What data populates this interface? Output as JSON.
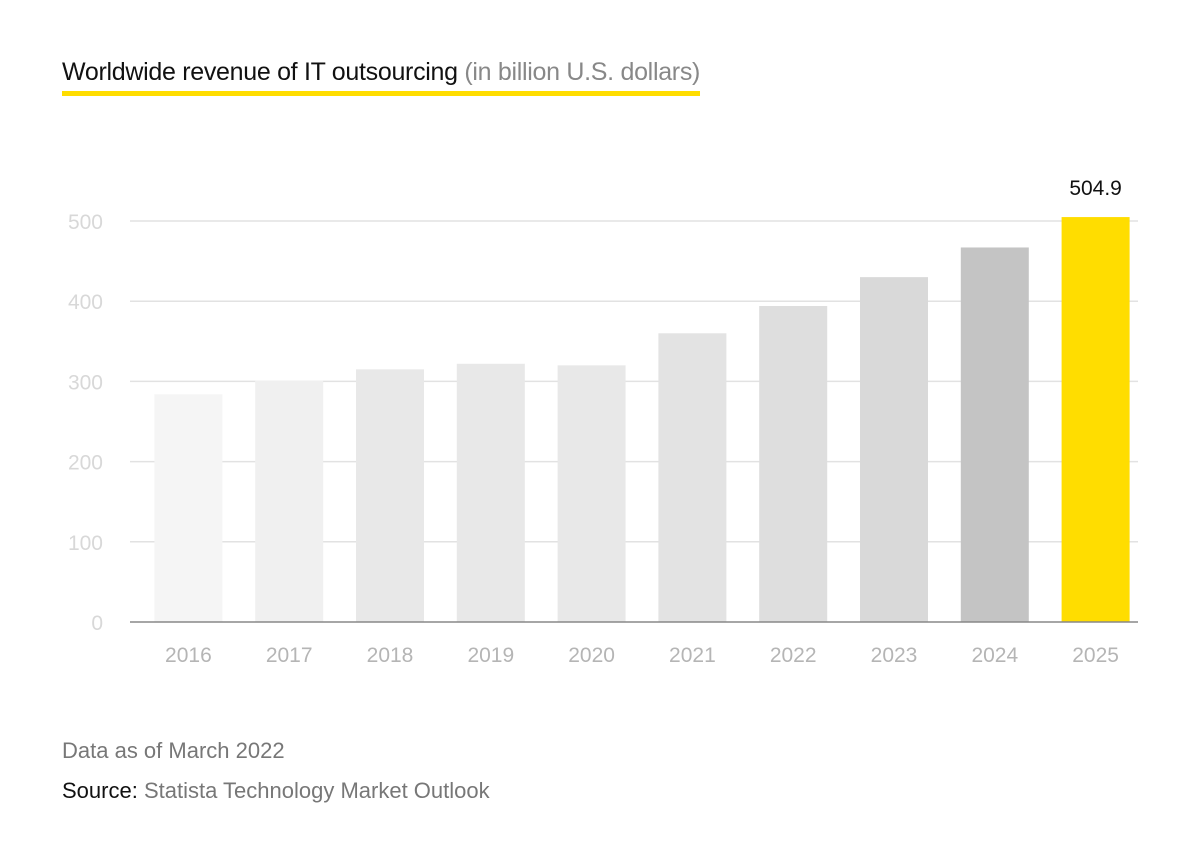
{
  "chart_data": {
    "type": "bar",
    "title": "Worldwide revenue of IT outsourcing",
    "subtitle": "(in billion U.S. dollars)",
    "categories": [
      "2016",
      "2017",
      "2018",
      "2019",
      "2020",
      "2021",
      "2022",
      "2023",
      "2024",
      "2025"
    ],
    "values": [
      284,
      301,
      315,
      322,
      320,
      360,
      394,
      430,
      467,
      504.9
    ],
    "data_labels": {
      "2025": "504.9"
    },
    "ylim": [
      0,
      500
    ],
    "yticks": [
      0,
      100,
      200,
      300,
      400,
      500
    ],
    "xlabel": "",
    "ylabel": "",
    "grid": true,
    "colors": [
      "#f5f5f5",
      "#f0f0f0",
      "#e8e8e8",
      "#e8e8e8",
      "#e8e8e8",
      "#e3e3e3",
      "#dedede",
      "#d9d9d9",
      "#c4c4c4",
      "#ffdd00"
    ]
  },
  "footer": {
    "note": "Data as of March 2022",
    "source_label": "Source:",
    "source_value": "Statista Technology Market Outlook"
  }
}
